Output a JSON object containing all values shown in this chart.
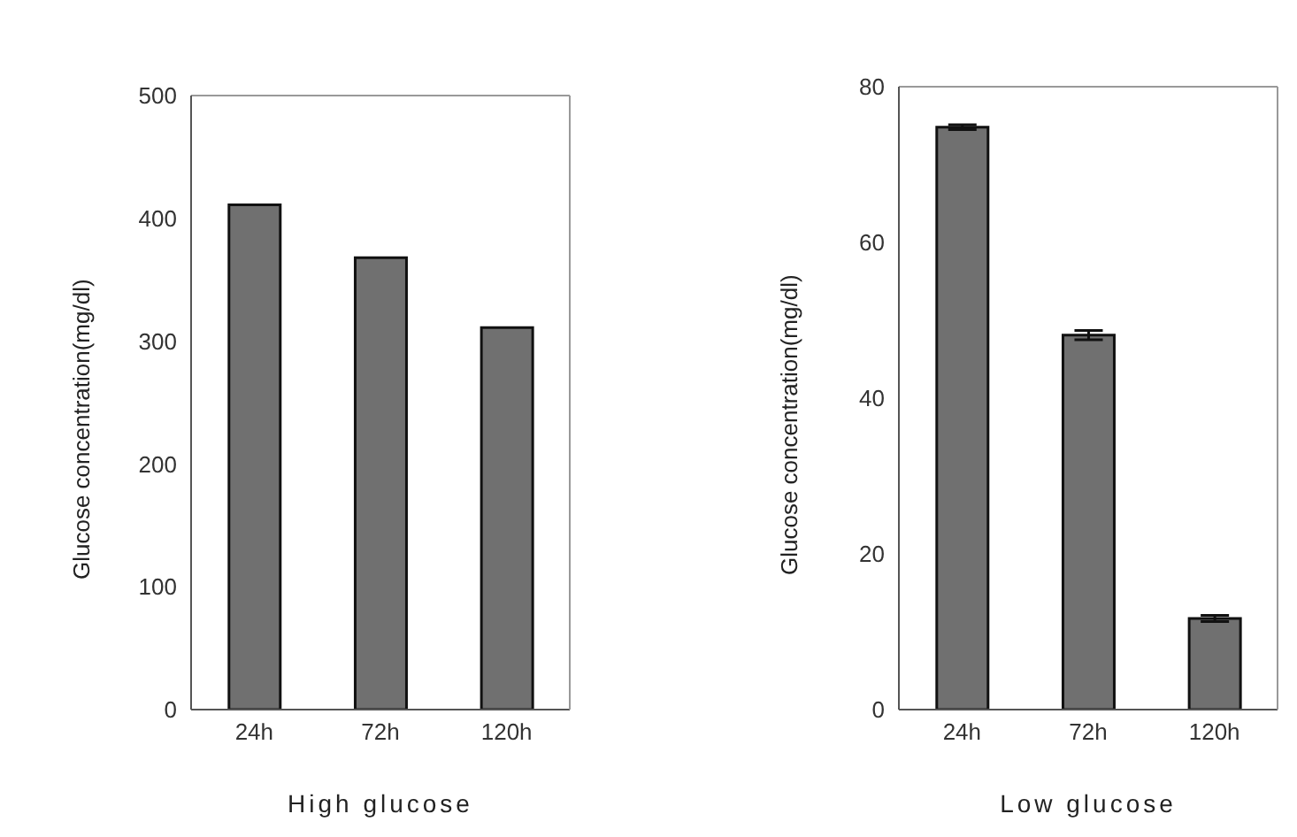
{
  "chart_data": [
    {
      "type": "bar",
      "xlabel": "High glucose",
      "ylabel": "Glucose concentration(mg/dl)",
      "categories": [
        "24h",
        "72h",
        "120h"
      ],
      "values": [
        411,
        368,
        311
      ],
      "color": "#707070",
      "ylim": [
        0,
        500
      ],
      "yticks": [
        0,
        100,
        200,
        300,
        400,
        500
      ]
    },
    {
      "type": "bar",
      "xlabel": "Low glucose",
      "ylabel": "Glucose concentration(mg/dl)",
      "categories": [
        "24h",
        "72h",
        "120h"
      ],
      "values": [
        74.8,
        48.1,
        11.7
      ],
      "errors": [
        0.3,
        0.6,
        0.4
      ],
      "color": "#707070",
      "ylim": [
        0,
        80
      ],
      "yticks": [
        0,
        20,
        40,
        60,
        80
      ]
    }
  ]
}
